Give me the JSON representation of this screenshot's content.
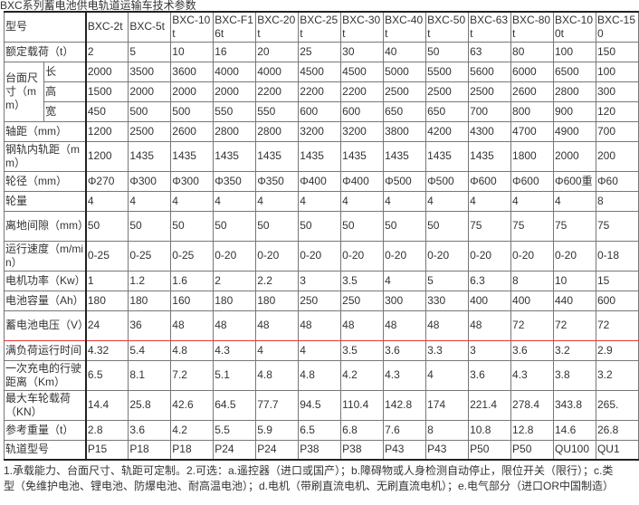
{
  "title": "BXC系列蓄电池供电轨道运输车技术参数",
  "header": {
    "label": "型号",
    "models": [
      "BXC-2t",
      "BXC-5t",
      "BXC-10t",
      "BXC-F16t",
      "BXC-20t",
      "BXC-25t",
      "BXC-30t",
      "BXC-40t",
      "BXC-50t",
      "BXC-63t",
      "BXC-80t",
      "BXC-100t",
      "BXC-150"
    ]
  },
  "rows": [
    {
      "label": "额定载荷（t）",
      "values": [
        "2",
        "5",
        "10",
        "16",
        "20",
        "25",
        "30",
        "40",
        "50",
        "63",
        "80",
        "100",
        "150"
      ]
    },
    {
      "group": "台面尺寸（mm）",
      "label": "长",
      "values": [
        "2000",
        "3500",
        "3600",
        "4000",
        "4000",
        "4500",
        "4500",
        "5000",
        "5500",
        "5600",
        "6000",
        "6500",
        "100"
      ]
    },
    {
      "label": "高",
      "values": [
        "1500",
        "2000",
        "2000",
        "2000",
        "2200",
        "2200",
        "2200",
        "2500",
        "2500",
        "2500",
        "2600",
        "2800",
        "300"
      ]
    },
    {
      "label": "宽",
      "values": [
        "450",
        "500",
        "500",
        "550",
        "550",
        "600",
        "600",
        "650",
        "650",
        "700",
        "800",
        "900",
        "120"
      ]
    },
    {
      "label": "轴距（mm）",
      "values": [
        "1200",
        "2500",
        "2600",
        "2800",
        "2800",
        "3200",
        "3200",
        "3800",
        "4200",
        "4300",
        "4700",
        "4900",
        "700"
      ]
    },
    {
      "label": "钢轨内轨距（mm）",
      "values": [
        "1200",
        "1435",
        "1435",
        "1435",
        "1435",
        "1435",
        "1435",
        "1435",
        "1435",
        "1435",
        "1800",
        "2000",
        "200"
      ]
    },
    {
      "label": "轮径（mm）",
      "values": [
        "Φ270",
        "Φ300",
        "Φ300",
        "Φ350",
        "Φ350",
        "Φ400",
        "Φ400",
        "Φ500",
        "Φ500",
        "Φ600",
        "Φ600",
        "Φ600重",
        "Φ60"
      ]
    },
    {
      "label": "轮量",
      "values": [
        "4",
        "4",
        "4",
        "4",
        "4",
        "4",
        "4",
        "4",
        "4",
        "4",
        "4",
        "4",
        "8"
      ]
    },
    {
      "label": "离地间隙（mm）",
      "values": [
        "50",
        "50",
        "50",
        "50",
        "50",
        "50",
        "50",
        "50",
        "50",
        "75",
        "75",
        "75",
        "75"
      ]
    },
    {
      "label": "运行速度（m/min）",
      "values": [
        "0-25",
        "0-25",
        "0-25",
        "0-20",
        "0-20",
        "0-20",
        "0-20",
        "0-20",
        "0-20",
        "0-20",
        "0-20",
        "0-20",
        "0-18"
      ]
    },
    {
      "label": "电机功率（Kw）",
      "values": [
        "1",
        "1.2",
        "1.6",
        "2",
        "2.2",
        "3",
        "3.5",
        "4",
        "5",
        "6.3",
        "8",
        "10",
        "15"
      ]
    },
    {
      "label": "电池容量（Ah）",
      "values": [
        "180",
        "180",
        "160",
        "180",
        "180",
        "250",
        "250",
        "300",
        "330",
        "400",
        "400",
        "440",
        "600"
      ]
    },
    {
      "label": "蓄电池电压（V）",
      "values": [
        "24",
        "36",
        "48",
        "48",
        "48",
        "48",
        "48",
        "48",
        "48",
        "48",
        "72",
        "72",
        "72"
      ]
    },
    {
      "label": "满负荷运行时间",
      "values": [
        "4.32",
        "5.4",
        "4.8",
        "4.3",
        "4",
        "4",
        "3.5",
        "3.6",
        "3.3",
        "3",
        "3.6",
        "3.2",
        "2.9"
      ]
    },
    {
      "label": "一次充电的行驶距离（Km）",
      "values": [
        "6.5",
        "8.1",
        "7.2",
        "5.1",
        "4.8",
        "4.8",
        "4.2",
        "4.3",
        "4",
        "3.6",
        "4.3",
        "3.8",
        "3.2"
      ]
    },
    {
      "label": "最大车轮载荷（KN）",
      "values": [
        "14.4",
        "25.8",
        "42.6",
        "64.5",
        "77.7",
        "94.5",
        "110.4",
        "142.8",
        "174",
        "221.4",
        "278.4",
        "343.8",
        "265."
      ]
    },
    {
      "label": "参考重量（t）",
      "values": [
        "2.8",
        "3.6",
        "4.2",
        "5.5",
        "5.9",
        "6.5",
        "6.8",
        "7.6",
        "8",
        "10.8",
        "12.8",
        "14.6",
        "26.8"
      ]
    },
    {
      "label": "轨道型号",
      "values": [
        "P15",
        "P18",
        "P18",
        "P24",
        "P24",
        "P38",
        "P38",
        "P43",
        "P43",
        "P50",
        "P50",
        "QU100",
        "QU1"
      ]
    }
  ],
  "notes": "1.承载能力、台面尺寸、轨距可定制。2.可选：a.遥控器（进口或国产）；b.障碍物或人身检测自动停止，限位开关（限行）；c.类型（免维护电池、锂电池、防爆电池、耐高温电池）；d.电机（带刷直流电机、无刷直流电机）；e.电气部分（进口OR中国制造）",
  "colors": {
    "text": "#333333",
    "border": "#777777",
    "selection": "#ee3333"
  }
}
